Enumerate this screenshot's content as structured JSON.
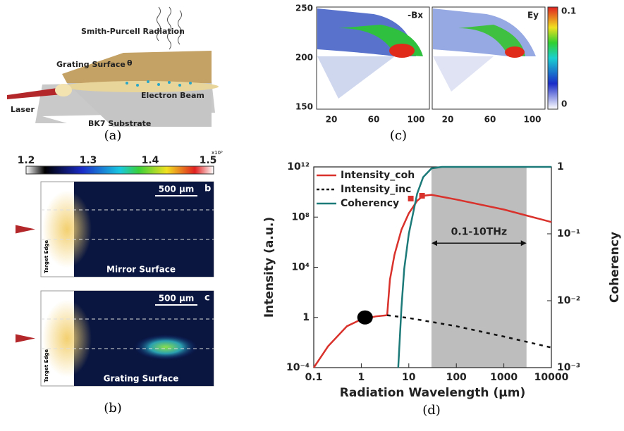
{
  "panel_a": {
    "caption": "(a)",
    "radiation": "Smith-Purcell Radiation",
    "grating": "Grating Surface",
    "beam": "Electron Beam",
    "laser": "Laser",
    "substrate": "BK7 Substrate",
    "angle": "θ"
  },
  "panel_b": {
    "caption": "(b)",
    "colorbar_ticks": [
      1.2,
      1.3,
      1.4,
      1.5
    ],
    "multiplier": "x10⁵",
    "images": [
      {
        "tag": "b",
        "scale": "500 μm",
        "surface": "Mirror Surface",
        "edge": "Target Edge"
      },
      {
        "tag": "c",
        "scale": "500 μm",
        "surface": "Grating Surface",
        "edge": "Target Edge"
      }
    ]
  },
  "panel_c": {
    "caption": "(c)",
    "xticks": [
      20,
      60,
      100
    ],
    "yticks": [
      250,
      200,
      150
    ],
    "maps": [
      "-Bx",
      "Ey"
    ],
    "colorbar_ticks": [
      0.1,
      0
    ]
  },
  "panel_d": {
    "type": "line",
    "caption": "(d)",
    "xlabel": "Radiation Wavelength (μm)",
    "ylabel": "Intensity (a.u.)",
    "y2label": "Coherency",
    "log_x": true,
    "log_y": true,
    "xlim": [
      0.1,
      10000
    ],
    "xticks": [
      0.1,
      1,
      10,
      100,
      1000,
      10000
    ],
    "ylim": [
      0.0001,
      1000000000000
    ],
    "yticks": [
      {
        "value": 0.0001,
        "label": "10⁻⁴"
      },
      1,
      {
        "value": 10000,
        "label": "10⁴"
      },
      {
        "value": 100000000,
        "label": "10⁸"
      },
      {
        "value": 1000000000000,
        "label": "10¹²"
      }
    ],
    "y2lim": [
      0.001,
      1
    ],
    "y2ticks": [
      {
        "value": 0.001,
        "label": "10⁻³"
      },
      {
        "value": 0.01,
        "label": "10⁻²"
      },
      {
        "value": 0.1,
        "label": "10⁻¹"
      },
      1
    ],
    "series": [
      {
        "name": "Intensity_coh",
        "color": "#d9312b",
        "dash": "solid",
        "x": [
          0.1,
          0.2,
          0.5,
          1,
          2,
          3.5,
          4,
          5,
          7,
          10,
          15,
          20,
          30,
          100,
          1000,
          10000
        ],
        "values": [
          0.0001,
          0.005,
          0.2,
          0.7,
          1.2,
          1.5,
          1000,
          100000,
          10000000,
          200000000,
          2000000000,
          5000000000,
          6000000000,
          2500000000,
          400000000,
          40000000
        ]
      },
      {
        "name": "Intensity_inc",
        "color": "#111111",
        "dash": "dashed",
        "x": [
          3.5,
          10,
          100,
          1000,
          10000
        ],
        "values": [
          1.5,
          0.9,
          0.2,
          0.03,
          0.004
        ]
      },
      {
        "name": "Coherency",
        "color": "#1c7a78",
        "dash": "solid",
        "axis": "y2",
        "x": [
          6,
          7,
          8,
          10,
          15,
          20,
          30,
          50,
          10000
        ],
        "values": [
          0.001,
          0.008,
          0.03,
          0.1,
          0.4,
          0.7,
          0.95,
          1,
          1
        ]
      }
    ],
    "points": [
      {
        "x": 11,
        "value": 3000000000,
        "color": "#d9312b",
        "shape": "square"
      },
      {
        "x": 19,
        "value": 5000000000,
        "color": "#d9312b",
        "shape": "square"
      },
      {
        "x": 1.2,
        "value": 1,
        "color": "#000000",
        "shape": "circle"
      }
    ],
    "band": {
      "x": [
        30,
        3000
      ],
      "label": "0.1-10THz",
      "color": "#bdbdbd"
    },
    "legend": "upper left"
  }
}
